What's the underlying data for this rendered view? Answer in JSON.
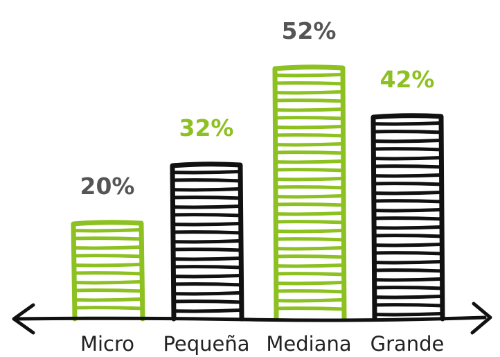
{
  "chart_data": {
    "type": "bar",
    "categories": [
      "Micro",
      "Pequeña",
      "Mediana",
      "Grande"
    ],
    "values": [
      20,
      32,
      52,
      42
    ],
    "data_labels": [
      "20%",
      "32%",
      "52%",
      "42%"
    ],
    "bar_colors": [
      "#8dc021",
      "#111111",
      "#8dc021",
      "#111111"
    ],
    "label_colors": [
      "#555555",
      "#8dc021",
      "#555555",
      "#8dc021"
    ],
    "ylim": [
      0,
      60
    ],
    "grid": false,
    "axis_color": "#111111",
    "style": "hand-drawn hatched bars"
  }
}
